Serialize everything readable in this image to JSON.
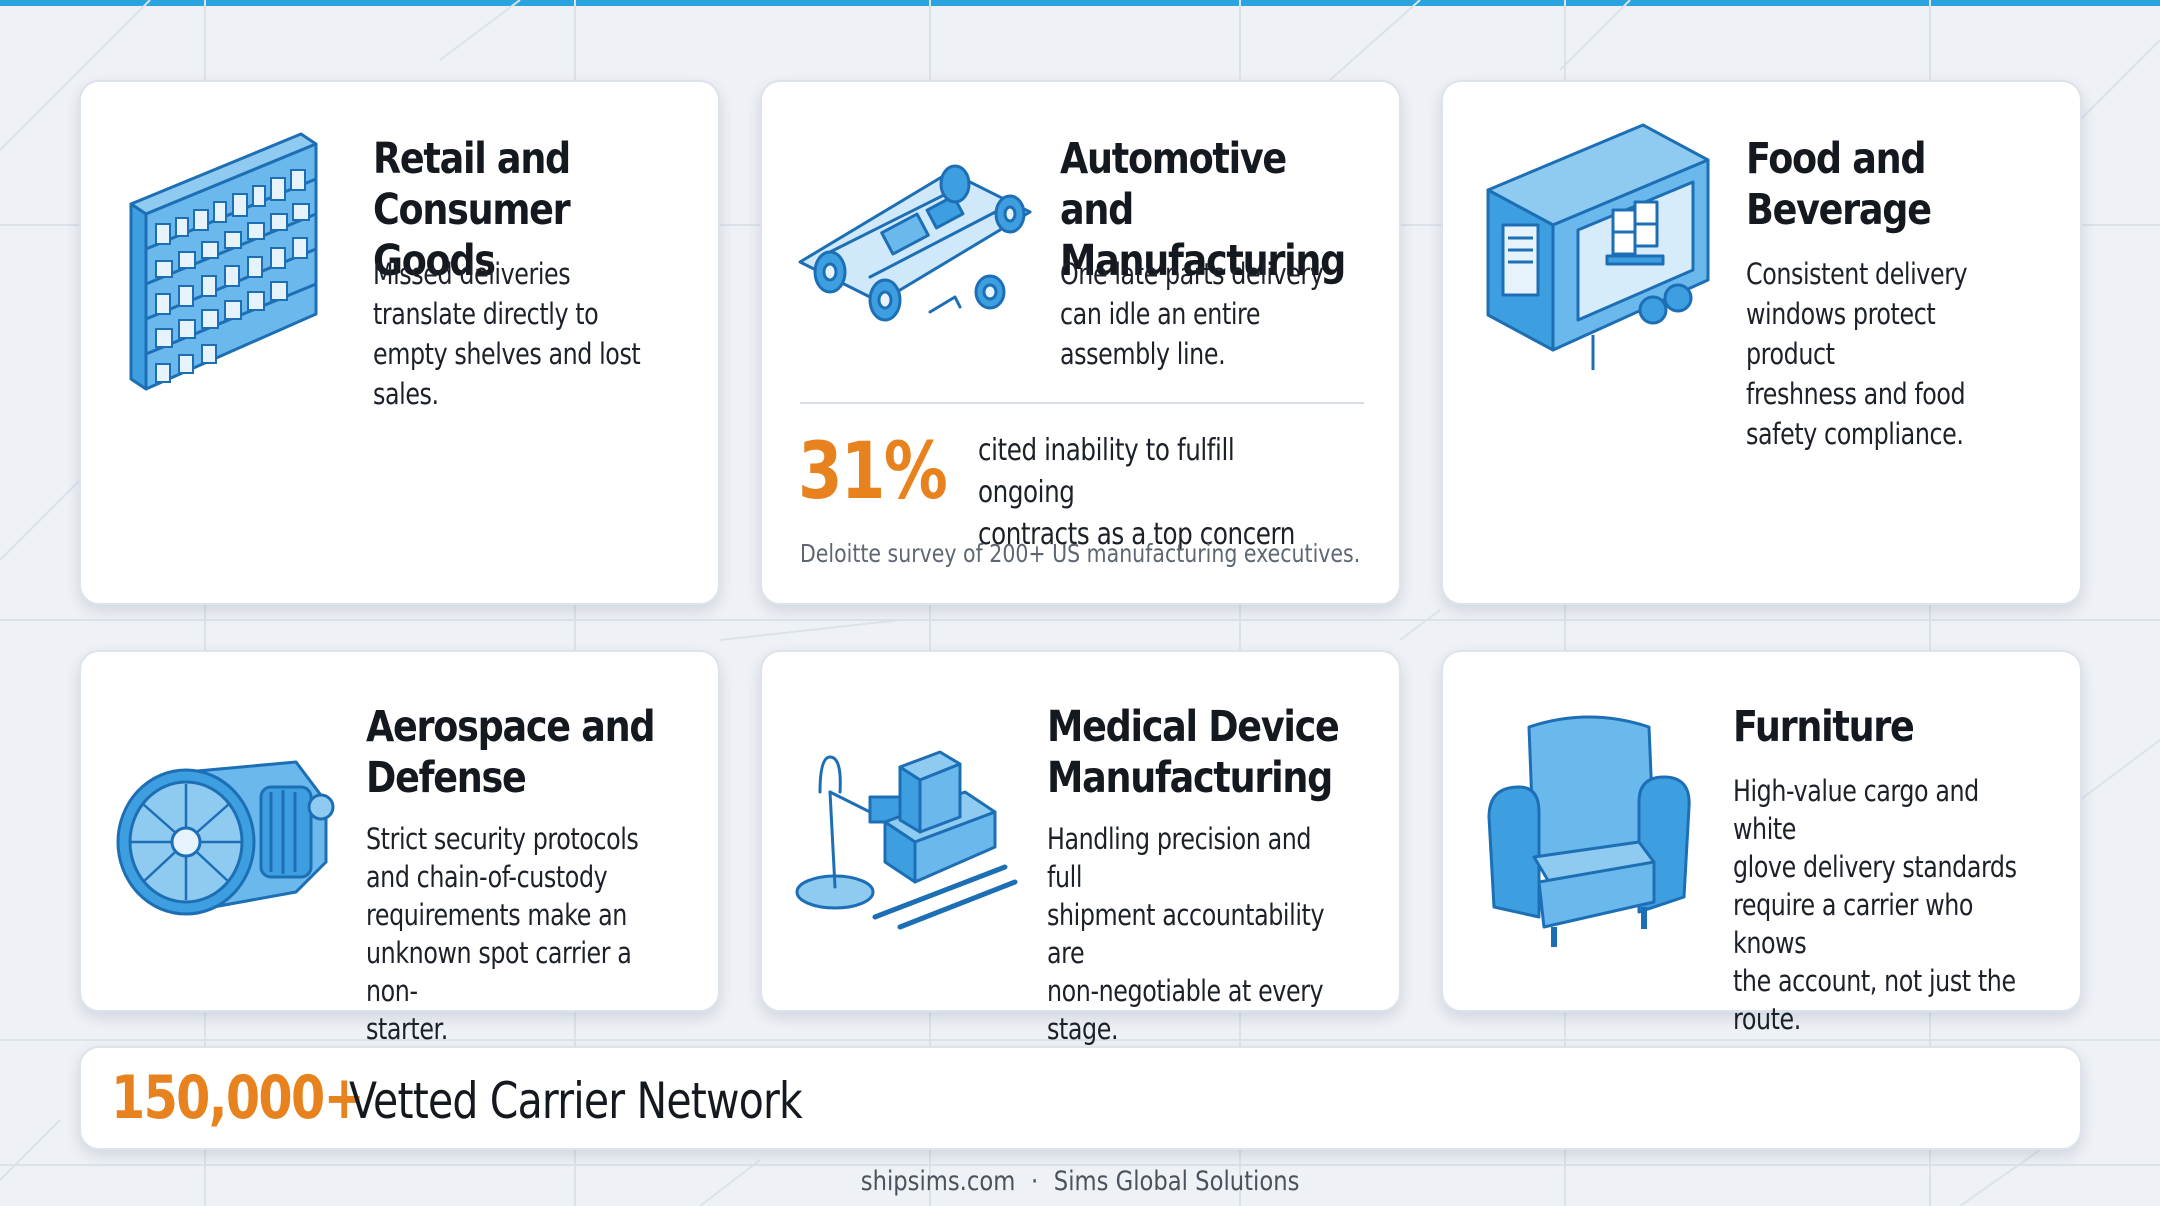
{
  "cards": [
    {
      "icon": "retail-shelf-icon",
      "title_lines": [
        "Retail and",
        "Consumer Goods"
      ],
      "description_lines": [
        "Missed deliveries",
        "translate directly to",
        "empty shelves and lost",
        "sales."
      ]
    },
    {
      "icon": "car-chassis-icon",
      "title_lines": [
        "Automotive and",
        "Manufacturing"
      ],
      "description_lines": [
        "One late parts delivery",
        "can idle an entire",
        "assembly line."
      ],
      "stat": {
        "value": "31%",
        "label_lines": [
          "cited inability to fulfill ongoing",
          "contracts as a top concern"
        ],
        "source": "Deloitte survey of 200+ US manufacturing executives."
      }
    },
    {
      "icon": "refrigerated-trailer-icon",
      "title_lines": [
        "Food and",
        "Beverage"
      ],
      "description_lines": [
        "Consistent delivery",
        "windows protect product",
        "freshness and food",
        "safety compliance."
      ]
    },
    {
      "icon": "jet-engine-icon",
      "title_lines": [
        "Aerospace and",
        "Defense"
      ],
      "description_lines": [
        "Strict security protocols",
        "and chain-of-custody",
        "requirements make an",
        "unknown spot carrier a non-",
        "starter."
      ]
    },
    {
      "icon": "medical-instruments-icon",
      "title_lines": [
        "Medical Device",
        "Manufacturing"
      ],
      "description_lines": [
        "Handling precision and full",
        "shipment accountability are",
        "non-negotiable at every",
        "stage."
      ]
    },
    {
      "icon": "armchair-icon",
      "title_lines": [
        "Furniture"
      ],
      "description_lines": [
        "High-value cargo and white",
        "glove delivery standards",
        "require a carrier who knows",
        "the account, not just the",
        "route."
      ]
    }
  ],
  "banner": {
    "value": "150,000+",
    "label": "Vetted Carrier Network"
  },
  "footer": {
    "site": "shipsims.com",
    "separator": "·",
    "company": "Sims Global Solutions"
  },
  "colors": {
    "accent": "#e8821e",
    "icon_blue": "#3d9fe0",
    "top_bar": "#2aa3de",
    "background": "#eef1f5"
  }
}
